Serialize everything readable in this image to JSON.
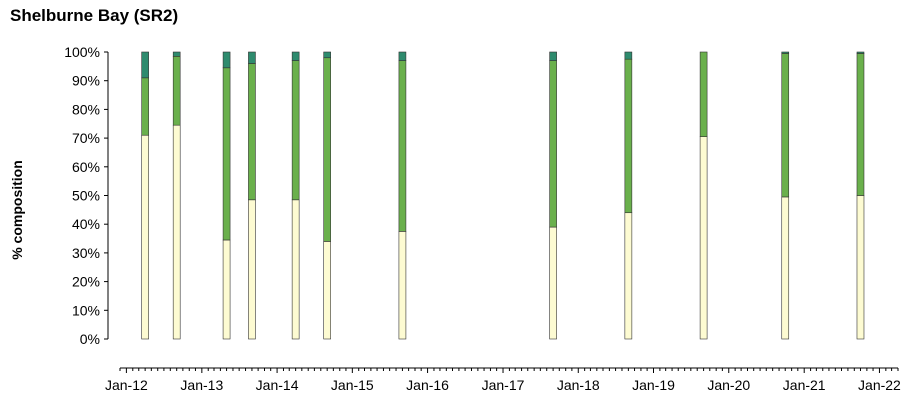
{
  "chart_data": {
    "type": "bar",
    "stacked": true,
    "title": "Shelburne Bay (SR2)",
    "ylabel": "% composition",
    "xlabel": "",
    "ylim": [
      0,
      100
    ],
    "yticks": [
      "0%",
      "10%",
      "20%",
      "30%",
      "40%",
      "50%",
      "60%",
      "70%",
      "80%",
      "90%",
      "100%"
    ],
    "xlim": [
      "2011-12-01",
      "2022-04-01"
    ],
    "xticks": [
      {
        "date": "2012-01-01",
        "label": "Jan-12"
      },
      {
        "date": "2013-01-01",
        "label": "Jan-13"
      },
      {
        "date": "2014-01-01",
        "label": "Jan-14"
      },
      {
        "date": "2015-01-01",
        "label": "Jan-15"
      },
      {
        "date": "2016-01-01",
        "label": "Jan-16"
      },
      {
        "date": "2017-01-01",
        "label": "Jan-17"
      },
      {
        "date": "2018-01-01",
        "label": "Jan-18"
      },
      {
        "date": "2019-01-01",
        "label": "Jan-19"
      },
      {
        "date": "2020-01-01",
        "label": "Jan-20"
      },
      {
        "date": "2021-01-01",
        "label": "Jan-21"
      },
      {
        "date": "2022-01-01",
        "label": "Jan-22"
      }
    ],
    "grid": false,
    "legend": "none",
    "colors": [
      "#fdfbd2",
      "#6ab04c",
      "#2e8b6e"
    ],
    "x": [
      "2012-04-01",
      "2012-09-01",
      "2013-05-01",
      "2013-09-01",
      "2014-04-01",
      "2014-09-01",
      "2015-09-01",
      "2017-09-01",
      "2018-09-01",
      "2019-09-01",
      "2020-10-01",
      "2021-10-01"
    ],
    "series": [
      {
        "values": [
          71,
          74.5,
          34.5,
          48.5,
          48.5,
          34,
          37.5,
          39,
          44,
          70.5,
          49.5,
          50
        ]
      },
      {
        "values": [
          20,
          24,
          60,
          47.5,
          48.5,
          64,
          59.5,
          58,
          53.5,
          29.5,
          50,
          49.5
        ]
      },
      {
        "values": [
          9,
          1.5,
          5.5,
          4,
          3,
          2,
          3,
          3,
          2.5,
          0,
          0.5,
          0.5
        ]
      }
    ]
  }
}
